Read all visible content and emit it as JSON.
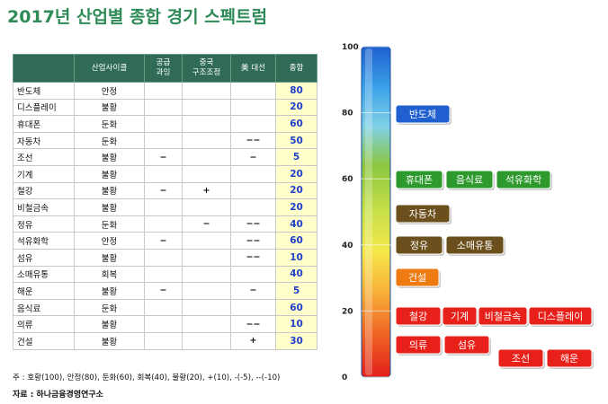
{
  "title": "2017년 산업별 종합 경기 스펙트럼",
  "table": {
    "headers": [
      "",
      "산업사이클",
      "공급\n과잉",
      "중국\n구조조정",
      "美 대선",
      "종합"
    ],
    "rows": [
      {
        "name": "반도체",
        "cycle": "안정",
        "supply": "",
        "china": "",
        "us": "",
        "score": "80"
      },
      {
        "name": "디스플레이",
        "cycle": "불황",
        "supply": "",
        "china": "",
        "us": "",
        "score": "20"
      },
      {
        "name": "휴대폰",
        "cycle": "둔화",
        "supply": "",
        "china": "",
        "us": "",
        "score": "60"
      },
      {
        "name": "자동차",
        "cycle": "둔화",
        "supply": "",
        "china": "",
        "us": "−−",
        "score": "50"
      },
      {
        "name": "조선",
        "cycle": "불황",
        "supply": "−",
        "china": "",
        "us": "−",
        "score": "5"
      },
      {
        "name": "기계",
        "cycle": "불황",
        "supply": "",
        "china": "",
        "us": "",
        "score": "20"
      },
      {
        "name": "철강",
        "cycle": "불황",
        "supply": "−",
        "china": "+",
        "us": "",
        "score": "20"
      },
      {
        "name": "비철금속",
        "cycle": "불황",
        "supply": "",
        "china": "",
        "us": "",
        "score": "20"
      },
      {
        "name": "정유",
        "cycle": "둔화",
        "supply": "",
        "china": "−",
        "us": "−−",
        "score": "40"
      },
      {
        "name": "석유화학",
        "cycle": "안정",
        "supply": "−",
        "china": "",
        "us": "−−",
        "score": "60"
      },
      {
        "name": "섬유",
        "cycle": "불황",
        "supply": "",
        "china": "",
        "us": "−−",
        "score": "10"
      },
      {
        "name": "소매유통",
        "cycle": "회복",
        "supply": "",
        "china": "",
        "us": "",
        "score": "40"
      },
      {
        "name": "해운",
        "cycle": "불황",
        "supply": "−",
        "china": "",
        "us": "−",
        "score": "5"
      },
      {
        "name": "음식료",
        "cycle": "둔화",
        "supply": "",
        "china": "",
        "us": "",
        "score": "60"
      },
      {
        "name": "의류",
        "cycle": "불황",
        "supply": "",
        "china": "",
        "us": "−−",
        "score": "10"
      },
      {
        "name": "건설",
        "cycle": "불황",
        "supply": "",
        "china": "",
        "us": "+",
        "score": "30"
      }
    ]
  },
  "note": "주 : 호황(100), 안정(80), 둔화(60), 회복(40), 불황(20), +(10), -(-5), --(-10)",
  "source": "자료 : 하나금융경영연구소",
  "chart_data": {
    "type": "table",
    "axis": {
      "min": 0,
      "max": 100,
      "ticks": [
        0,
        20,
        40,
        60,
        80,
        100
      ]
    },
    "spectrum": [
      {
        "score": 80,
        "labels": [
          "반도체"
        ],
        "color": "#1f5fcf"
      },
      {
        "score": 60,
        "labels": [
          "휴대폰",
          "음식료",
          "석유화학"
        ],
        "color": "#2e9a2e"
      },
      {
        "score": 50,
        "labels": [
          "자동차"
        ],
        "color": "#6b4f1c"
      },
      {
        "score": 40,
        "labels": [
          "정유",
          "소매유통"
        ],
        "color": "#6b4f1c"
      },
      {
        "score": 30,
        "labels": [
          "건설"
        ],
        "color": "#ee7a12"
      },
      {
        "score": 20,
        "labels": [
          "철강",
          "기계",
          "비철금속",
          "디스플레이"
        ],
        "color": "#e8201a"
      },
      {
        "score": 10,
        "labels": [
          "의류",
          "섬유"
        ],
        "color": "#e8201a"
      },
      {
        "score": 5,
        "labels": [
          "조선",
          "해운"
        ],
        "color": "#e8201a"
      }
    ]
  }
}
